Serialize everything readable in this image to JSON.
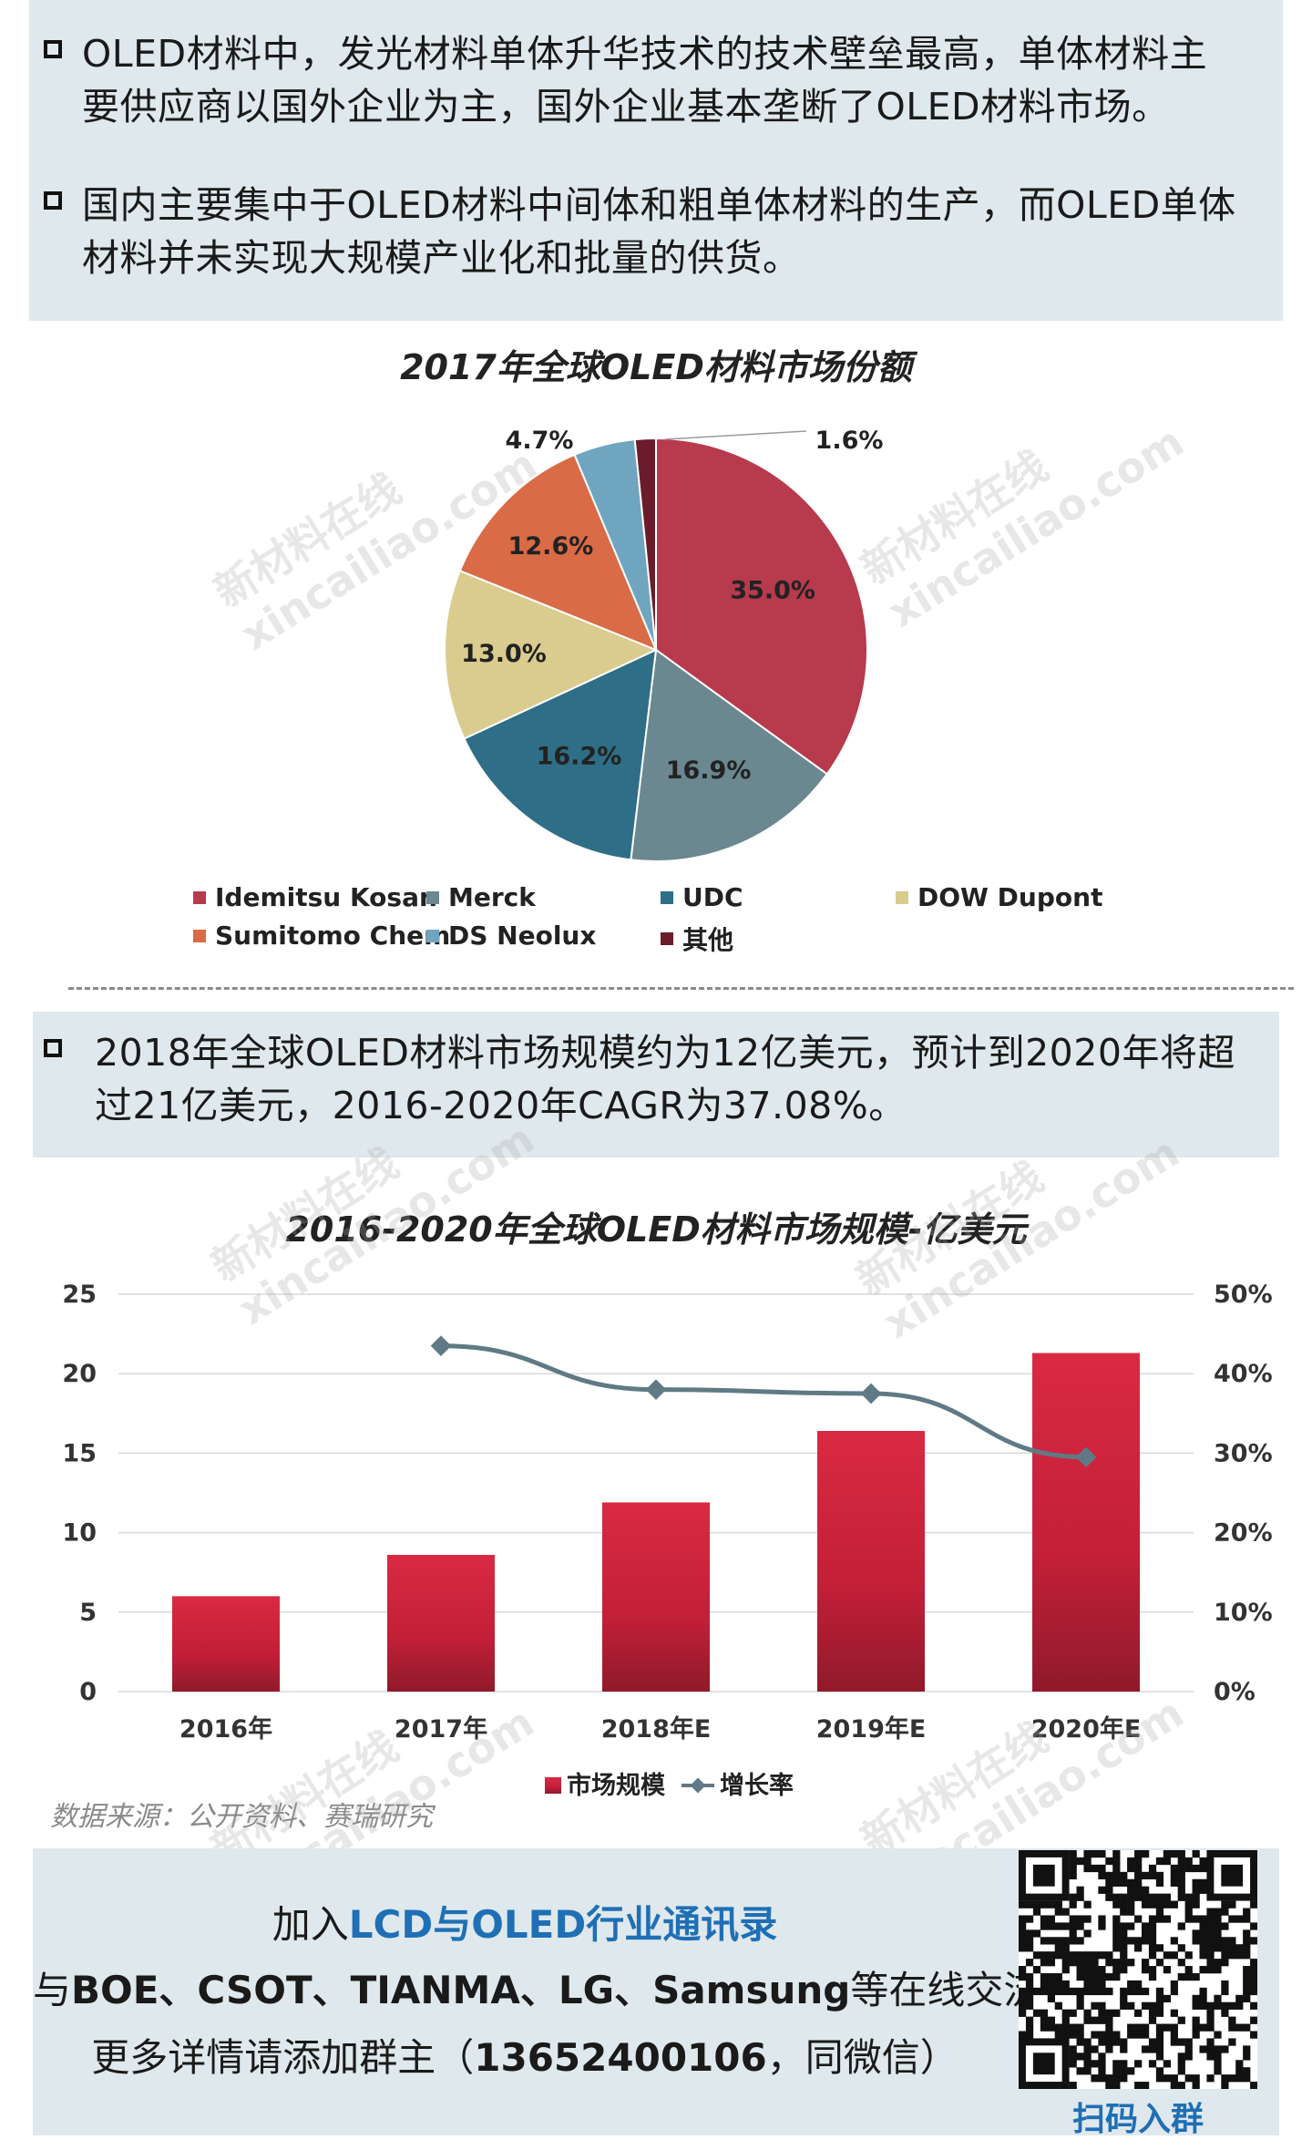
{
  "intro": {
    "bullet1": "OLED材料中，发光材料单体升华技术的技术壁垒最高，单体材料主要供应商以国外企业为主，国外企业基本垄断了OLED材料市场。",
    "bullet1_line1": "OLED材料中，发光材料单体升华技术的技术壁垒最高，单体材料主",
    "bullet1_line2": "要供应商以国外企业为主，国外企业基本垄断了OLED材料市场。",
    "bullet2_line1": "国内主要集中于OLED材料中间体和粗单体材料的生产，而OLED单体",
    "bullet2_line2": "材料并未实现大规模产业化和批量的供货。"
  },
  "mid": {
    "bullet_line1": "2018年全球OLED材料市场规模约为12亿美元，预计到2020年将超",
    "bullet_line2": "过21亿美元，2016-2020年CAGR为37.08%。"
  },
  "watermark": {
    "line1": "新材料在线",
    "line2": "xincailiao.com"
  },
  "chart_data": [
    {
      "type": "pie",
      "title": "2017年全球OLED材料市场份额",
      "legend_placement": "bottom",
      "slices": [
        {
          "name": "Idemitsu Kosan",
          "value": 35.0,
          "label": "35.0%",
          "color": "#b73a4d"
        },
        {
          "name": "Merck",
          "value": 16.9,
          "label": "16.9%",
          "color": "#6b8790"
        },
        {
          "name": "UDC",
          "value": 16.2,
          "label": "16.2%",
          "color": "#2f6e87"
        },
        {
          "name": "DOW Dupont",
          "value": 13.0,
          "label": "13.0%",
          "color": "#d9cc8e"
        },
        {
          "name": "Sumitomo Chem",
          "value": 12.6,
          "label": "12.6%",
          "color": "#d96b47"
        },
        {
          "name": "DS Neolux",
          "value": 4.7,
          "label": "4.7%",
          "color": "#6fa5be"
        },
        {
          "name": "其他",
          "value": 1.6,
          "label": "1.6%",
          "color": "#6b1c2a"
        }
      ]
    },
    {
      "type": "bar",
      "title": "2016-2020年全球OLED材料市场规模-亿美元",
      "categories": [
        "2016年",
        "2017年",
        "2018年E",
        "2019年E",
        "2020年E"
      ],
      "series": [
        {
          "name": "市场规模",
          "type": "bar",
          "axis": "left",
          "values": [
            6.0,
            8.6,
            11.9,
            16.4,
            21.3
          ],
          "color": "#c8203a"
        },
        {
          "name": "增长率",
          "type": "line",
          "axis": "right",
          "values": [
            null,
            43.5,
            38.0,
            37.5,
            29.5
          ],
          "color": "#5f7a84"
        }
      ],
      "y_left": {
        "min": 0,
        "max": 25,
        "ticks": [
          "0",
          "5",
          "10",
          "15",
          "20",
          "25"
        ]
      },
      "y_right": {
        "min": 0,
        "max": 50,
        "ticks": [
          "0%",
          "10%",
          "20%",
          "30%",
          "40%",
          "50%"
        ]
      },
      "grid": "horizontal",
      "legend_placement": "bottom"
    }
  ],
  "source": "数据来源：公开资料、赛瑞研究",
  "footer": {
    "line1_pre": "加入",
    "line1_highlight": "LCD与OLED行业通讯录",
    "line2_pre": "与",
    "line2_brands": "BOE、CSOT、TIANMA、LG、Samsung",
    "line2_post": "等在线交流",
    "line3_pre": "更多详情请添加群主（",
    "line3_phone": "13652400106",
    "line3_post": "，同微信）",
    "qr_label": "扫码入群",
    "highlight_color": "#1f6fb5"
  }
}
